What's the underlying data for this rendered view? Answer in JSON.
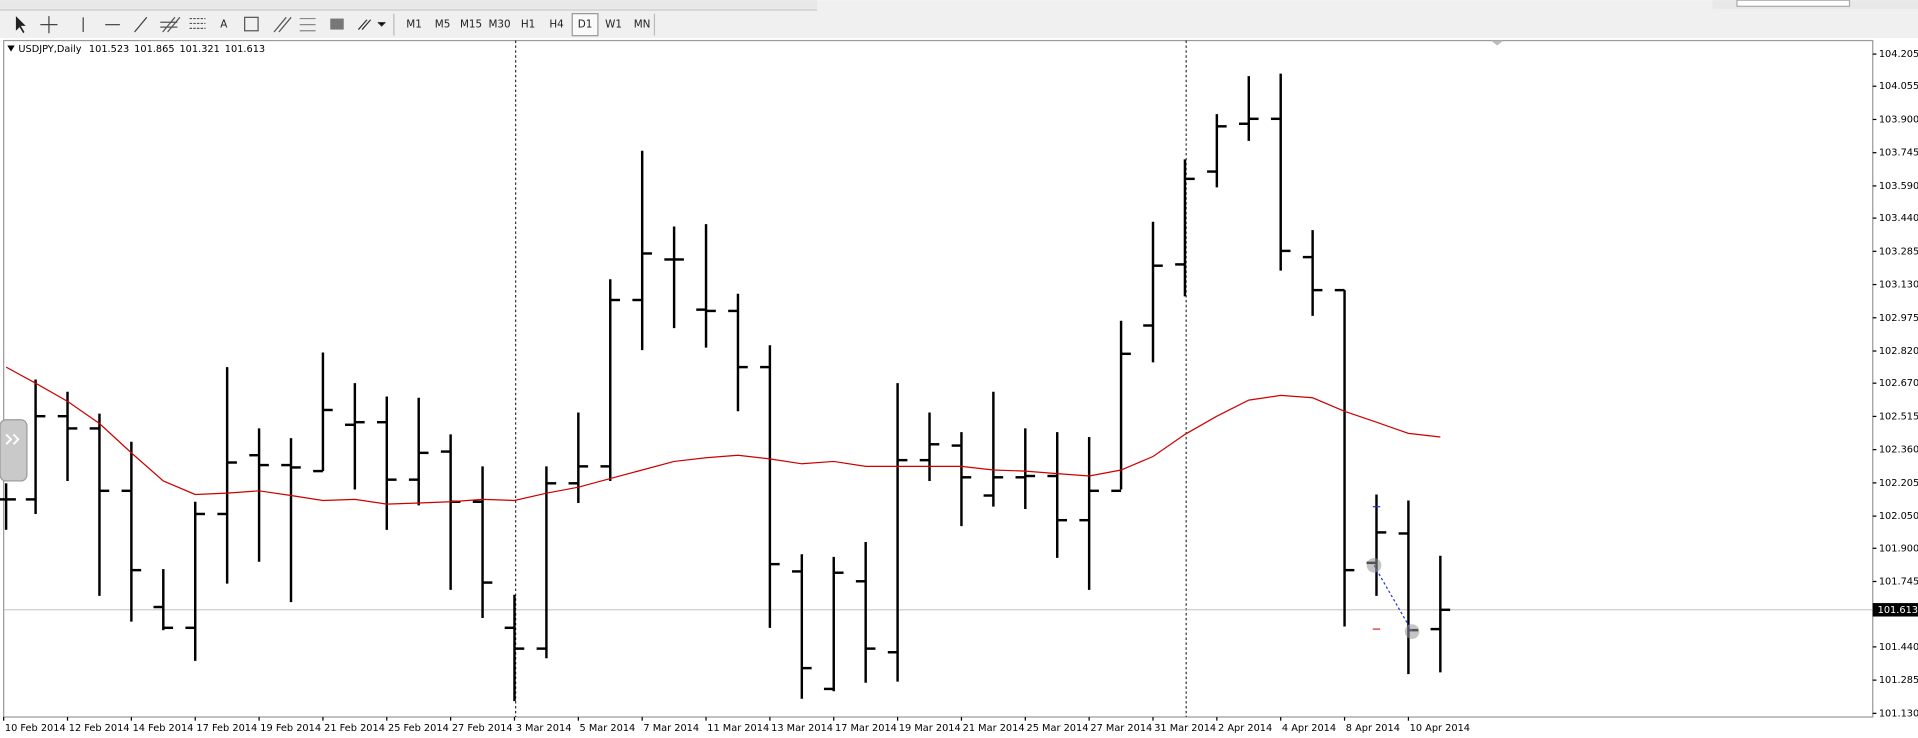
{
  "toolbar": {
    "timeframes": [
      "M1",
      "M5",
      "M15",
      "M30",
      "H1",
      "H4",
      "D1",
      "W1",
      "MN"
    ],
    "text_tool": "A"
  },
  "chart_data": {
    "type": "ohlc",
    "title": "USDJPY,Daily",
    "color": "#000000",
    "categories": [
      "10 Feb 2014",
      null,
      "12 Feb 2014",
      null,
      "14 Feb 2014",
      null,
      "17 Feb 2014",
      null,
      "19 Feb 2014",
      null,
      "21 Feb 2014",
      null,
      "25 Feb 2014",
      null,
      "27 Feb 2014",
      null,
      "3 Mar 2014",
      null,
      "5 Mar 2014",
      null,
      "7 Mar 2014",
      null,
      "11 Mar 2014",
      null,
      "13 Mar 2014",
      null,
      "17 Mar 2014",
      null,
      "19 Mar 2014",
      null,
      "21 Mar 2014",
      null,
      "25 Mar 2014",
      null,
      "27 Mar 2014",
      null,
      "31 Mar 2014",
      null,
      "2 Apr 2014",
      null,
      "4 Apr 2014",
      null,
      "8 Apr 2014",
      null,
      "10 Apr 2014",
      null
    ],
    "open": [
      102.128,
      102.128,
      102.516,
      102.459,
      102.168,
      101.626,
      101.529,
      102.06,
      102.334,
      102.288,
      102.26,
      102.476,
      102.488,
      102.22,
      102.351,
      102.117,
      101.529,
      101.432,
      102.203,
      102.282,
      103.058,
      103.247,
      103.013,
      103.007,
      102.745,
      101.792,
      101.244,
      101.746,
      101.415,
      102.311,
      102.379,
      102.146,
      102.231,
      102.237,
      102.031,
      102.168,
      102.939,
      103.224,
      103.657,
      103.88,
      103.903,
      103.258,
      103.104,
      101.832,
      101.969,
      101.523
    ],
    "high": [
      102.203,
      102.687,
      102.63,
      102.528,
      102.397,
      101.803,
      102.117,
      102.745,
      102.459,
      102.414,
      102.813,
      102.67,
      102.608,
      102.602,
      102.431,
      102.282,
      101.683,
      102.282,
      102.533,
      103.155,
      103.754,
      103.401,
      103.412,
      103.087,
      102.847,
      101.872,
      101.86,
      101.929,
      102.67,
      102.533,
      102.442,
      102.63,
      102.459,
      102.442,
      102.419,
      102.961,
      103.423,
      103.714,
      103.925,
      104.102,
      104.114,
      103.384,
      103.104,
      102.151,
      102.123,
      101.865
    ],
    "low": [
      101.986,
      102.06,
      102.214,
      101.678,
      101.558,
      101.518,
      101.375,
      101.735,
      101.837,
      101.649,
      102.26,
      102.174,
      101.986,
      102.1,
      101.706,
      101.575,
      101.187,
      101.387,
      102.111,
      102.214,
      102.824,
      102.927,
      102.836,
      102.539,
      101.529,
      101.198,
      101.233,
      101.273,
      101.278,
      102.214,
      102.003,
      102.094,
      102.083,
      101.855,
      101.706,
      102.174,
      102.767,
      103.075,
      103.583,
      103.8,
      103.195,
      102.984,
      101.535,
      101.678,
      101.313,
      101.321
    ],
    "close": [
      102.128,
      102.516,
      102.459,
      102.168,
      101.798,
      101.529,
      102.06,
      102.3,
      102.288,
      102.277,
      102.545,
      102.488,
      102.22,
      102.345,
      102.117,
      101.74,
      101.432,
      102.203,
      102.282,
      103.058,
      103.275,
      103.247,
      103.007,
      102.745,
      101.826,
      101.341,
      101.786,
      101.432,
      102.311,
      102.385,
      102.231,
      102.231,
      102.237,
      102.031,
      102.168,
      102.807,
      103.218,
      103.623,
      103.868,
      103.903,
      103.287,
      103.104,
      101.798,
      101.974,
      101.518,
      101.613
    ],
    "ma": {
      "color": "#cc0000",
      "values": [
        102.745,
        102.67,
        102.585,
        102.482,
        102.345,
        102.214,
        102.151,
        102.157,
        102.168,
        102.146,
        102.123,
        102.128,
        102.106,
        102.111,
        102.117,
        102.128,
        102.123,
        102.157,
        102.185,
        102.225,
        102.265,
        102.305,
        102.322,
        102.334,
        102.317,
        102.294,
        102.305,
        102.282,
        102.282,
        102.282,
        102.282,
        102.265,
        102.26,
        102.248,
        102.237,
        102.265,
        102.328,
        102.431,
        102.516,
        102.591,
        102.613,
        102.602,
        102.539,
        102.488,
        102.436,
        102.419
      ]
    },
    "ylim": [
      101.113,
      104.268
    ],
    "yticks": [
      104.205,
      104.055,
      {
        "value": 103.9,
        "label": "103.900"
      },
      103.745,
      {
        "value": 103.59,
        "label": "103.590"
      },
      {
        "value": 103.44,
        "label": "103.440"
      },
      103.285,
      {
        "value": 103.13,
        "label": "103.130"
      },
      102.975,
      {
        "value": 102.82,
        "label": "102.820"
      },
      {
        "value": 102.67,
        "label": "102.670"
      },
      102.515,
      {
        "value": 102.36,
        "label": "102.360"
      },
      102.205,
      {
        "value": 102.05,
        "label": "102.050"
      },
      {
        "value": 101.9,
        "label": "101.900"
      },
      101.745,
      {
        "value": 101.44,
        "label": "101.440"
      },
      101.285,
      {
        "value": 101.13,
        "label": "101.130"
      }
    ],
    "grid": false
  }
}
